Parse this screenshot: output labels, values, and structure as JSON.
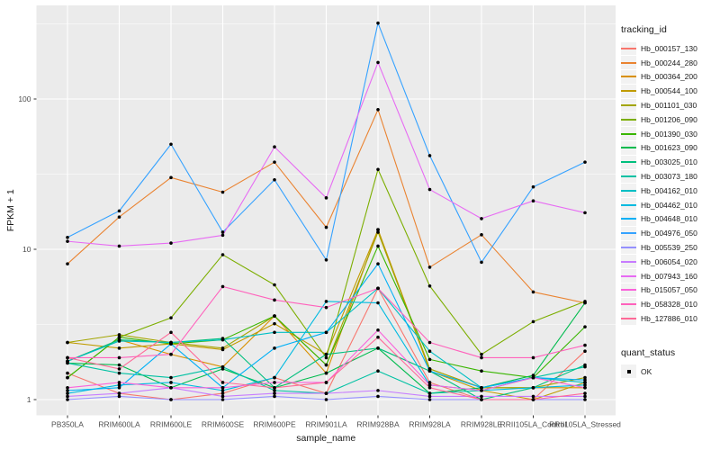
{
  "colors": {
    "panel_background": "#EBEBEB",
    "gridline": "#FFFFFF",
    "tick_label": "#4D4D4D",
    "axis_title": "#1A1A1A",
    "tick_mark": "#333333",
    "legend_key_background": "#F2F2F2",
    "point": "#000000"
  },
  "chart_data": {
    "type": "line",
    "title": "",
    "xlabel": "sample_name",
    "ylabel": "FPKM + 1",
    "x_categories": [
      "PB350LA",
      "RRIM600LA",
      "RRIM600LE",
      "RRIM600SE",
      "RRIM600PE",
      "RRIM901LA",
      "RRIM928BA",
      "RRIM928LA",
      "RRIM928LE",
      "RRII105LA_Control",
      "RRII105LA_Stressed"
    ],
    "y_axis": {
      "scale": "log10",
      "tick_labels": [
        "1",
        "10",
        "100"
      ],
      "tick_values": [
        1,
        10,
        100
      ],
      "minor_tick_values": [
        3.1623,
        31.623,
        316.23
      ],
      "range_hint": [
        0.8,
        410
      ]
    },
    "grid": "on",
    "legend_position": "right",
    "legend": {
      "title": "tracking_id"
    },
    "legend2": {
      "title": "quant_status",
      "items": [
        {
          "label": "OK",
          "marker": "black-square"
        }
      ]
    },
    "points": {
      "shape": "circle",
      "color": "#000000"
    },
    "series": [
      {
        "name": "Hb_000157_130",
        "color": "#F8766D",
        "values": [
          1.5,
          1.1,
          1.0,
          1.1,
          1.4,
          1.1,
          5.5,
          1.3,
          1.0,
          1.0,
          2.1
        ]
      },
      {
        "name": "Hb_000244_280",
        "color": "#EA8331",
        "values": [
          8,
          16.4,
          30,
          24,
          38,
          14,
          85,
          7.6,
          12.5,
          5.2,
          4.4
        ]
      },
      {
        "name": "Hb_000364_200",
        "color": "#D89000",
        "values": [
          1.8,
          2.5,
          2.0,
          1.65,
          3.6,
          1.5,
          13.5,
          1.6,
          1.2,
          1.2,
          1.2
        ]
      },
      {
        "name": "Hb_000544_100",
        "color": "#C09B00",
        "values": [
          2.4,
          2.2,
          2.35,
          2.15,
          3.2,
          2.0,
          13.5,
          1.55,
          1.15,
          1.0,
          1.3
        ]
      },
      {
        "name": "Hb_001101_030",
        "color": "#A3A500",
        "values": [
          2.4,
          2.7,
          2.4,
          2.2,
          3.6,
          1.7,
          13.0,
          1.6,
          1.2,
          1.2,
          1.4
        ]
      },
      {
        "name": "Hb_001206_090",
        "color": "#7CAE00",
        "values": [
          1.4,
          2.6,
          3.5,
          9.2,
          5.8,
          1.9,
          34,
          5.7,
          2.0,
          3.3,
          4.5
        ]
      },
      {
        "name": "Hb_001390_030",
        "color": "#39B600",
        "values": [
          1.4,
          2.6,
          2.35,
          2.5,
          3.6,
          1.7,
          10.5,
          1.85,
          1.55,
          1.4,
          3.05
        ]
      },
      {
        "name": "Hb_001623_090",
        "color": "#00BB4E",
        "values": [
          1.75,
          1.7,
          1.2,
          1.6,
          1.2,
          1.5,
          2.2,
          1.1,
          1.2,
          1.45,
          4.4
        ]
      },
      {
        "name": "Hb_003025_010",
        "color": "#00BF7D",
        "values": [
          1.8,
          2.5,
          2.4,
          2.55,
          1.2,
          2.0,
          2.2,
          1.55,
          1.0,
          1.2,
          1.7
        ]
      },
      {
        "name": "Hb_003073_180",
        "color": "#00C1A3",
        "values": [
          1.75,
          1.5,
          1.4,
          1.65,
          1.15,
          1.1,
          1.55,
          1.1,
          1.15,
          1.4,
          1.65
        ]
      },
      {
        "name": "Hb_004162_010",
        "color": "#00BFC4",
        "values": [
          1.8,
          2.45,
          2.4,
          2.5,
          2.8,
          2.8,
          5.5,
          2.1,
          1.2,
          1.4,
          1.3
        ]
      },
      {
        "name": "Hb_004462_010",
        "color": "#00BAE0",
        "values": [
          1.1,
          1.25,
          1.3,
          1.15,
          1.4,
          4.5,
          4.4,
          1.25,
          1.15,
          1.2,
          1.25
        ]
      },
      {
        "name": "Hb_004648_010",
        "color": "#00B0F6",
        "values": [
          1.15,
          1.2,
          2.35,
          1.2,
          2.2,
          2.8,
          8.0,
          1.55,
          1.2,
          1.4,
          1.35
        ]
      },
      {
        "name": "Hb_004976_050",
        "color": "#35A2FF",
        "values": [
          12,
          18,
          50,
          13,
          29,
          8.5,
          320,
          42,
          8.2,
          26,
          38
        ]
      },
      {
        "name": "Hb_005539_250",
        "color": "#9590FF",
        "values": [
          1.0,
          1.05,
          1.0,
          1.0,
          1.05,
          1.0,
          1.05,
          1.0,
          1.0,
          1.0,
          1.0
        ]
      },
      {
        "name": "Hb_006054_020",
        "color": "#C77CFF",
        "values": [
          1.05,
          1.1,
          1.2,
          1.05,
          1.1,
          1.1,
          1.15,
          1.05,
          1.05,
          1.05,
          1.05
        ]
      },
      {
        "name": "Hb_007943_160",
        "color": "#E76BF3",
        "values": [
          11.3,
          10.5,
          11,
          12.4,
          48,
          22,
          175,
          25,
          16,
          21,
          17.5
        ]
      },
      {
        "name": "Hb_015057_050",
        "color": "#FA62DB",
        "values": [
          1.2,
          1.3,
          1.2,
          1.2,
          1.3,
          1.3,
          2.9,
          1.25,
          1.15,
          1.4,
          1.2
        ]
      },
      {
        "name": "Hb_058328_010",
        "color": "#FF62BC",
        "values": [
          1.9,
          1.9,
          2.0,
          5.65,
          4.6,
          4.1,
          5.5,
          2.4,
          1.9,
          1.9,
          2.3
        ]
      },
      {
        "name": "Hb_127886_010",
        "color": "#FF6A98",
        "values": [
          1.9,
          1.6,
          2.8,
          1.3,
          1.2,
          1.3,
          2.6,
          1.2,
          1.0,
          1.0,
          1.1
        ]
      }
    ]
  }
}
